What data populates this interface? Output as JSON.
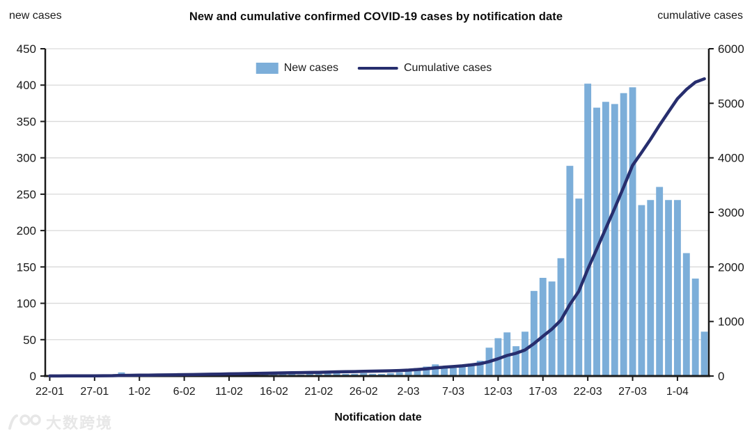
{
  "header": {
    "left_axis_title": "new cases",
    "title": "New and cumulative confirmed COVID-19 cases by notification date",
    "right_axis_title": "cumulative cases"
  },
  "legend": {
    "new_cases_label": "New cases",
    "cumulative_label": "Cumulative cases"
  },
  "xaxis_title": "Notification date",
  "watermark_text": "大数跨境",
  "colors": {
    "bar": "#7CAED9",
    "line": "#272E6E",
    "grid": "#D9D9D9",
    "axis": "#1a1a1a",
    "tick_text": "#1a1a1a"
  },
  "chart_data": {
    "type": "bar",
    "title": "New and cumulative confirmed COVID-19 cases by notification date",
    "xlabel": "Notification date",
    "left_axis": {
      "label": "new cases",
      "min": 0,
      "max": 450,
      "step": 50
    },
    "right_axis": {
      "label": "cumulative cases",
      "min": 0,
      "max": 6000,
      "step": 1000
    },
    "grid": "horizontal",
    "legend_position": "top-center",
    "x_tick_indices": [
      0,
      5,
      10,
      15,
      20,
      25,
      30,
      35,
      40,
      45,
      50,
      55,
      60,
      65,
      70
    ],
    "x_tick_labels": [
      "22-01",
      "27-01",
      "1-02",
      "6-02",
      "11-02",
      "16-02",
      "21-02",
      "26-02",
      "2-03",
      "7-03",
      "12-03",
      "17-03",
      "22-03",
      "27-03",
      "1-04"
    ],
    "categories": [
      "22-01",
      "23-01",
      "24-01",
      "25-01",
      "26-01",
      "27-01",
      "28-01",
      "29-01",
      "30-01",
      "31-01",
      "1-02",
      "2-02",
      "3-02",
      "4-02",
      "5-02",
      "6-02",
      "7-02",
      "8-02",
      "9-02",
      "10-02",
      "11-02",
      "12-02",
      "13-02",
      "14-02",
      "15-02",
      "16-02",
      "17-02",
      "18-02",
      "19-02",
      "20-02",
      "21-02",
      "22-02",
      "23-02",
      "24-02",
      "25-02",
      "26-02",
      "27-02",
      "28-02",
      "29-02",
      "1-03",
      "2-03",
      "3-03",
      "4-03",
      "5-03",
      "6-03",
      "7-03",
      "8-03",
      "9-03",
      "10-03",
      "11-03",
      "12-03",
      "13-03",
      "14-03",
      "15-03",
      "16-03",
      "17-03",
      "18-03",
      "19-03",
      "20-03",
      "21-03",
      "22-03",
      "23-03",
      "24-03",
      "25-03",
      "26-03",
      "27-03",
      "28-03",
      "29-03",
      "30-03",
      "31-03",
      "1-04",
      "2-04",
      "3-04",
      "4-04"
    ],
    "series": [
      {
        "name": "New cases",
        "type": "bar",
        "axis": "left",
        "values": [
          1,
          0,
          1,
          1,
          1,
          0,
          1,
          1,
          5,
          2,
          2,
          2,
          2,
          2,
          2,
          2,
          2,
          3,
          3,
          3,
          3,
          3,
          3,
          3,
          3,
          3,
          3,
          3,
          2,
          3,
          3,
          4,
          4,
          3,
          3,
          4,
          3,
          3,
          4,
          5,
          8,
          11,
          13,
          16,
          13,
          11,
          14,
          17,
          21,
          39,
          52,
          60,
          41,
          61,
          117,
          135,
          130,
          162,
          289,
          244,
          402,
          369,
          377,
          374,
          389,
          397,
          235,
          242,
          260,
          242,
          242,
          169,
          134,
          61
        ]
      },
      {
        "name": "Cumulative cases",
        "type": "line",
        "axis": "right",
        "values": [
          1,
          1,
          2,
          3,
          4,
          4,
          5,
          6,
          11,
          13,
          15,
          17,
          19,
          21,
          23,
          25,
          27,
          30,
          33,
          36,
          39,
          42,
          45,
          48,
          51,
          54,
          57,
          60,
          62,
          65,
          68,
          72,
          76,
          79,
          82,
          86,
          89,
          92,
          96,
          101,
          109,
          120,
          133,
          149,
          162,
          173,
          187,
          204,
          225,
          264,
          316,
          376,
          417,
          478,
          595,
          730,
          860,
          1022,
          1311,
          1555,
          1957,
          2326,
          2703,
          3077,
          3466,
          3863,
          4098,
          4340,
          4600,
          4842,
          5084,
          5253,
          5387,
          5448
        ]
      }
    ]
  }
}
